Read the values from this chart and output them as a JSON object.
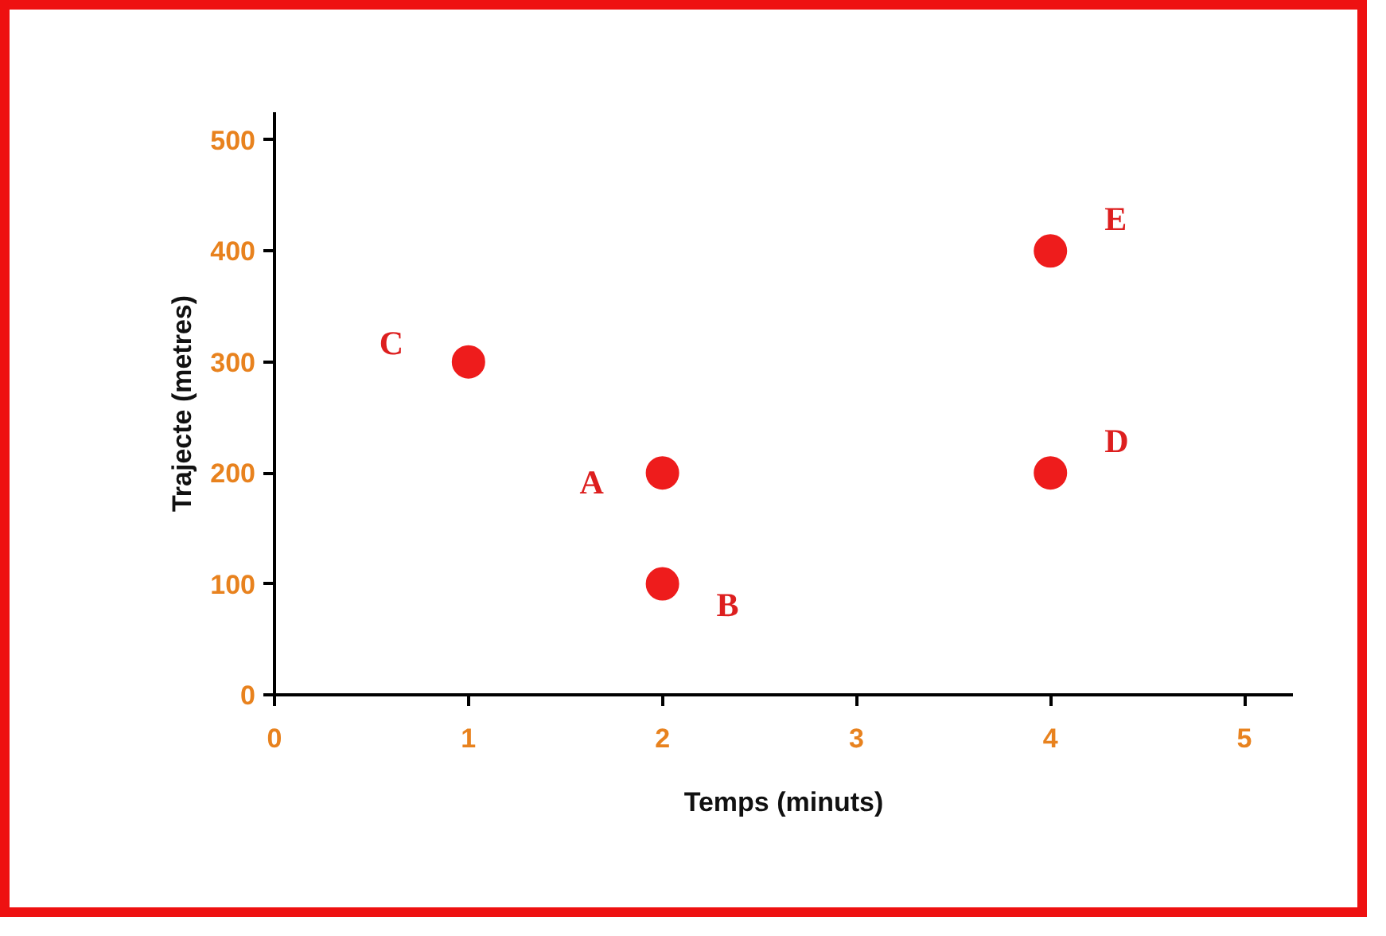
{
  "chart_data": {
    "type": "scatter",
    "xlabel": "Temps (minuts)",
    "ylabel": "Trajecte (metres)",
    "x": [
      2,
      2,
      1,
      4,
      4
    ],
    "series": [
      {
        "color": "#ee1c1c",
        "values": [
          200,
          100,
          300,
          200,
          400
        ]
      }
    ],
    "annotations": [
      {
        "text": "A",
        "x": 2,
        "y": 200
      },
      {
        "text": "B",
        "x": 2,
        "y": 100
      },
      {
        "text": "C",
        "x": 1,
        "y": 300
      },
      {
        "text": "D",
        "x": 4,
        "y": 200
      },
      {
        "text": "E",
        "x": 4,
        "y": 400
      }
    ],
    "xlim": [
      0,
      5.25
    ],
    "ylim": [
      0,
      525
    ],
    "xticks": [
      0,
      1,
      2,
      3,
      4,
      5
    ],
    "yticks": [
      0,
      100,
      200,
      300,
      400,
      500
    ],
    "grid": false,
    "marker": "circle"
  }
}
